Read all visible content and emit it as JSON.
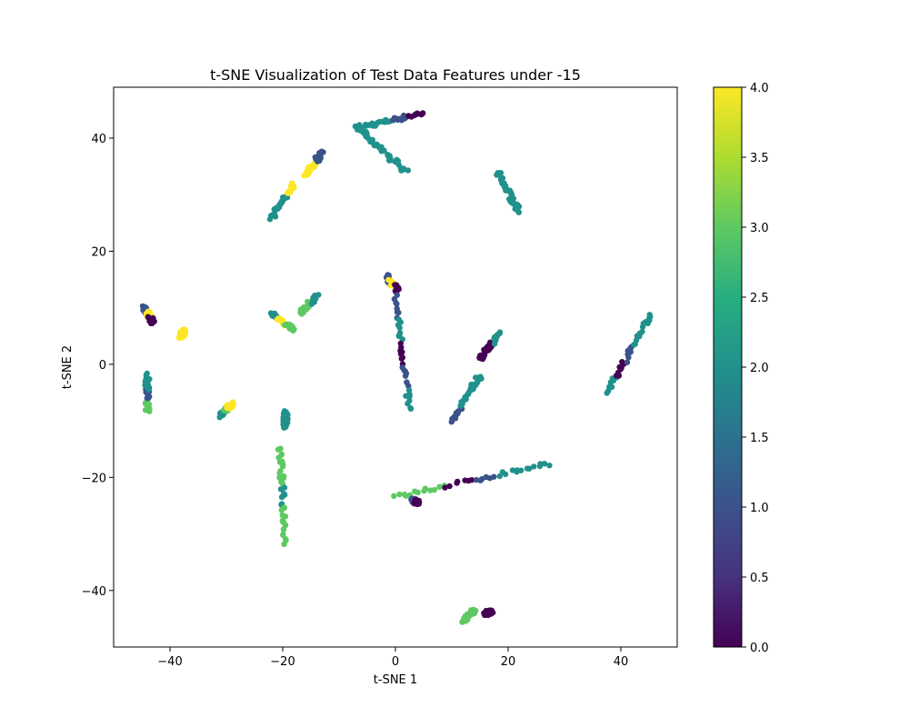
{
  "chart_data": {
    "type": "scatter",
    "title": "t-SNE Visualization of Test Data Features under -15",
    "xlabel": "t-SNE 1",
    "ylabel": "t-SNE 2",
    "xlim": [
      -50,
      50
    ],
    "ylim": [
      -50,
      49
    ],
    "xticks": [
      -40,
      -20,
      0,
      20,
      40
    ],
    "yticks": [
      -40,
      -20,
      0,
      20,
      40
    ],
    "xtick_labels": [
      "−40",
      "−20",
      "0",
      "20",
      "40"
    ],
    "ytick_labels": [
      "−40",
      "−20",
      "0",
      "20",
      "40"
    ],
    "grid": false,
    "colormap": "viridis",
    "colorbar": {
      "range": [
        0.0,
        4.0
      ],
      "ticks": [
        0.0,
        0.5,
        1.0,
        1.5,
        2.0,
        2.5,
        3.0,
        3.5,
        4.0
      ],
      "tick_labels": [
        "0.0",
        "0.5",
        "1.0",
        "1.5",
        "2.0",
        "2.5",
        "3.0",
        "3.5",
        "4.0"
      ]
    },
    "clusters": [
      {
        "from": [
          -6,
          42
        ],
        "to": [
          5,
          44.5
        ],
        "values": [
          2,
          2,
          1,
          0
        ]
      },
      {
        "from": [
          2,
          34
        ],
        "to": [
          -7,
          42
        ],
        "values": [
          2,
          2,
          2
        ]
      },
      {
        "from": [
          18,
          34
        ],
        "to": [
          22,
          27
        ],
        "values": [
          2,
          2,
          2
        ]
      },
      {
        "from": [
          -22,
          26
        ],
        "to": [
          -18,
          32
        ],
        "values": [
          2,
          2,
          4
        ]
      },
      {
        "from": [
          -16,
          33.5
        ],
        "to": [
          -13,
          37.5
        ],
        "values": [
          4,
          4,
          1
        ]
      },
      {
        "from": [
          -1.5,
          15.5
        ],
        "to": [
          0.5,
          13
        ],
        "values": [
          1,
          4,
          0
        ]
      },
      {
        "from": [
          0,
          12
        ],
        "to": [
          2.5,
          -8
        ],
        "values": [
          1,
          2,
          0,
          1,
          2
        ]
      },
      {
        "from": [
          10,
          -10
        ],
        "to": [
          15,
          -2
        ],
        "values": [
          1,
          2,
          2
        ]
      },
      {
        "from": [
          15,
          1
        ],
        "to": [
          18.5,
          5.5
        ],
        "values": [
          0,
          0,
          2
        ]
      },
      {
        "from": [
          37.5,
          -5
        ],
        "to": [
          45.5,
          9
        ],
        "values": [
          2,
          0,
          1,
          2,
          2
        ]
      },
      {
        "from": [
          -44.5,
          10
        ],
        "to": [
          -43,
          7.5
        ],
        "values": [
          1,
          4,
          0
        ]
      },
      {
        "from": [
          -38,
          5
        ],
        "to": [
          -37.5,
          6
        ],
        "values": [
          4,
          4
        ]
      },
      {
        "from": [
          -44,
          -8.5
        ],
        "to": [
          -44,
          -2
        ],
        "values": [
          3,
          1,
          2
        ]
      },
      {
        "from": [
          -31,
          -9
        ],
        "to": [
          -29,
          -7
        ],
        "values": [
          2,
          3,
          4
        ]
      },
      {
        "from": [
          -22,
          9
        ],
        "to": [
          -18,
          6
        ],
        "values": [
          2,
          4,
          3
        ]
      },
      {
        "from": [
          -17,
          9
        ],
        "to": [
          -14,
          12
        ],
        "values": [
          3,
          3,
          2
        ]
      },
      {
        "from": [
          -19.5,
          -11
        ],
        "to": [
          -19.5,
          -8.5
        ],
        "values": [
          2,
          2
        ]
      },
      {
        "from": [
          -20.5,
          -15
        ],
        "to": [
          -19.5,
          -31.5
        ],
        "values": [
          3,
          3,
          2,
          3,
          3
        ]
      },
      {
        "from": [
          0,
          -23.5
        ],
        "to": [
          27.5,
          -17.5
        ],
        "values": [
          3,
          3,
          0,
          1,
          2,
          2
        ]
      },
      {
        "from": [
          3,
          -24
        ],
        "to": [
          4,
          -24.5
        ],
        "values": [
          1,
          0
        ]
      },
      {
        "from": [
          12,
          -45.5
        ],
        "to": [
          14,
          -43.5
        ],
        "values": [
          3,
          3
        ]
      },
      {
        "from": [
          16,
          -44
        ],
        "to": [
          17,
          -43.8
        ],
        "values": [
          0,
          0
        ]
      }
    ]
  }
}
